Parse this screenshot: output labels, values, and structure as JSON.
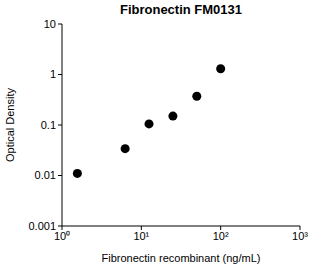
{
  "chart_data": {
    "type": "scatter",
    "title": "Fibronectin FM0131",
    "x_label": "Fibronectin recombinant (ng/mL)",
    "y_label": "Optical Density",
    "x": [
      1.5625,
      6.25,
      12.5,
      25,
      50,
      100
    ],
    "values": [
      0.011,
      0.034,
      0.105,
      0.15,
      0.37,
      1.3
    ],
    "color": "#000000",
    "marker": "circle",
    "log": true,
    "xlim": [
      1,
      1000
    ],
    "xticks": [
      {
        "value": 1,
        "label": "10⁰"
      },
      {
        "value": 10,
        "label": "10¹"
      },
      {
        "value": 100,
        "label": "10²"
      },
      {
        "value": 1000,
        "label": "10³"
      }
    ],
    "ylim": [
      0.001,
      10
    ],
    "yticks": [
      0.001,
      0.01,
      0.1,
      1,
      10
    ],
    "grid": false
  }
}
